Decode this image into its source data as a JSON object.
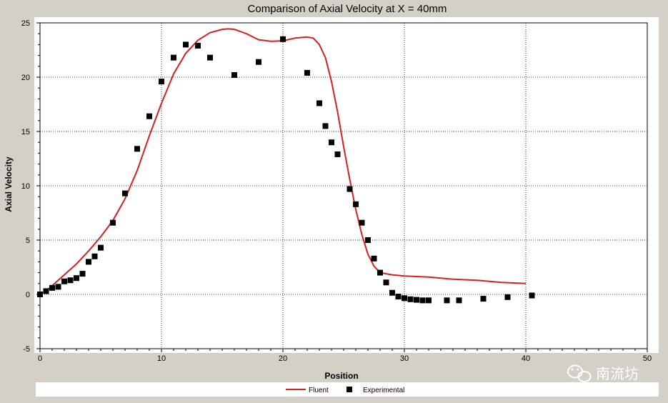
{
  "chart_data": {
    "type": "line",
    "title": "Comparison of Axial Velocity at X = 40mm",
    "xlabel": "Position",
    "ylabel": "Axial Velocity",
    "xlim": [
      0,
      50
    ],
    "ylim": [
      -5,
      25
    ],
    "x_ticks": [
      0,
      10,
      20,
      30,
      40,
      50
    ],
    "y_ticks": [
      -5,
      0,
      5,
      10,
      15,
      20,
      25
    ],
    "grid": true,
    "legend_position": "bottom",
    "series": [
      {
        "name": "Fluent",
        "kind": "line",
        "color": "#d42020",
        "points": [
          [
            0,
            0
          ],
          [
            0.5,
            0.3
          ],
          [
            1,
            0.8
          ],
          [
            2,
            1.8
          ],
          [
            3,
            2.8
          ],
          [
            4,
            4.0
          ],
          [
            5,
            5.3
          ],
          [
            6,
            6.8
          ],
          [
            7,
            8.8
          ],
          [
            8,
            11.4
          ],
          [
            9,
            14.6
          ],
          [
            10,
            17.6
          ],
          [
            11,
            20.3
          ],
          [
            12,
            22.2
          ],
          [
            13,
            23.4
          ],
          [
            14,
            24.1
          ],
          [
            15,
            24.4
          ],
          [
            15.5,
            24.45
          ],
          [
            16,
            24.4
          ],
          [
            17,
            24.0
          ],
          [
            18,
            23.45
          ],
          [
            19,
            23.3
          ],
          [
            20,
            23.35
          ],
          [
            21,
            23.6
          ],
          [
            22,
            23.7
          ],
          [
            22.5,
            23.6
          ],
          [
            23,
            23.0
          ],
          [
            23.5,
            21.8
          ],
          [
            24,
            19.6
          ],
          [
            24.5,
            16.8
          ],
          [
            25,
            13.6
          ],
          [
            25.5,
            10.6
          ],
          [
            26,
            7.8
          ],
          [
            26.5,
            5.5
          ],
          [
            27,
            3.7
          ],
          [
            27.5,
            2.6
          ],
          [
            28,
            2.0
          ],
          [
            29,
            1.8
          ],
          [
            30,
            1.7
          ],
          [
            32,
            1.6
          ],
          [
            34,
            1.4
          ],
          [
            36,
            1.3
          ],
          [
            38,
            1.1
          ],
          [
            40,
            1.0
          ]
        ]
      },
      {
        "name": "Experimental",
        "kind": "scatter",
        "color": "#000000",
        "points": [
          [
            0,
            0
          ],
          [
            0.5,
            0.3
          ],
          [
            1,
            0.6
          ],
          [
            1.5,
            0.7
          ],
          [
            2,
            1.2
          ],
          [
            2.5,
            1.3
          ],
          [
            3,
            1.5
          ],
          [
            3.5,
            1.9
          ],
          [
            4,
            3.0
          ],
          [
            4.5,
            3.5
          ],
          [
            5,
            4.3
          ],
          [
            6,
            6.6
          ],
          [
            7,
            9.3
          ],
          [
            8,
            13.4
          ],
          [
            9,
            16.4
          ],
          [
            10,
            19.6
          ],
          [
            11,
            21.8
          ],
          [
            12,
            23.0
          ],
          [
            13,
            22.9
          ],
          [
            14,
            21.8
          ],
          [
            16,
            20.2
          ],
          [
            18,
            21.4
          ],
          [
            20,
            23.5
          ],
          [
            22,
            20.4
          ],
          [
            23,
            17.6
          ],
          [
            23.5,
            15.5
          ],
          [
            24,
            14.0
          ],
          [
            24.5,
            12.9
          ],
          [
            25.5,
            9.7
          ],
          [
            26,
            8.3
          ],
          [
            26.5,
            6.6
          ],
          [
            27,
            5.0
          ],
          [
            27.5,
            3.3
          ],
          [
            28,
            2.0
          ],
          [
            28.5,
            1.1
          ],
          [
            29,
            0.15
          ],
          [
            29.5,
            -0.2
          ],
          [
            30,
            -0.35
          ],
          [
            30.5,
            -0.45
          ],
          [
            31,
            -0.5
          ],
          [
            31.5,
            -0.55
          ],
          [
            32,
            -0.55
          ],
          [
            33.5,
            -0.55
          ],
          [
            34.5,
            -0.55
          ],
          [
            36.5,
            -0.4
          ],
          [
            38.5,
            -0.25
          ],
          [
            40.5,
            -0.1
          ]
        ]
      }
    ]
  },
  "watermark": "南流坊"
}
